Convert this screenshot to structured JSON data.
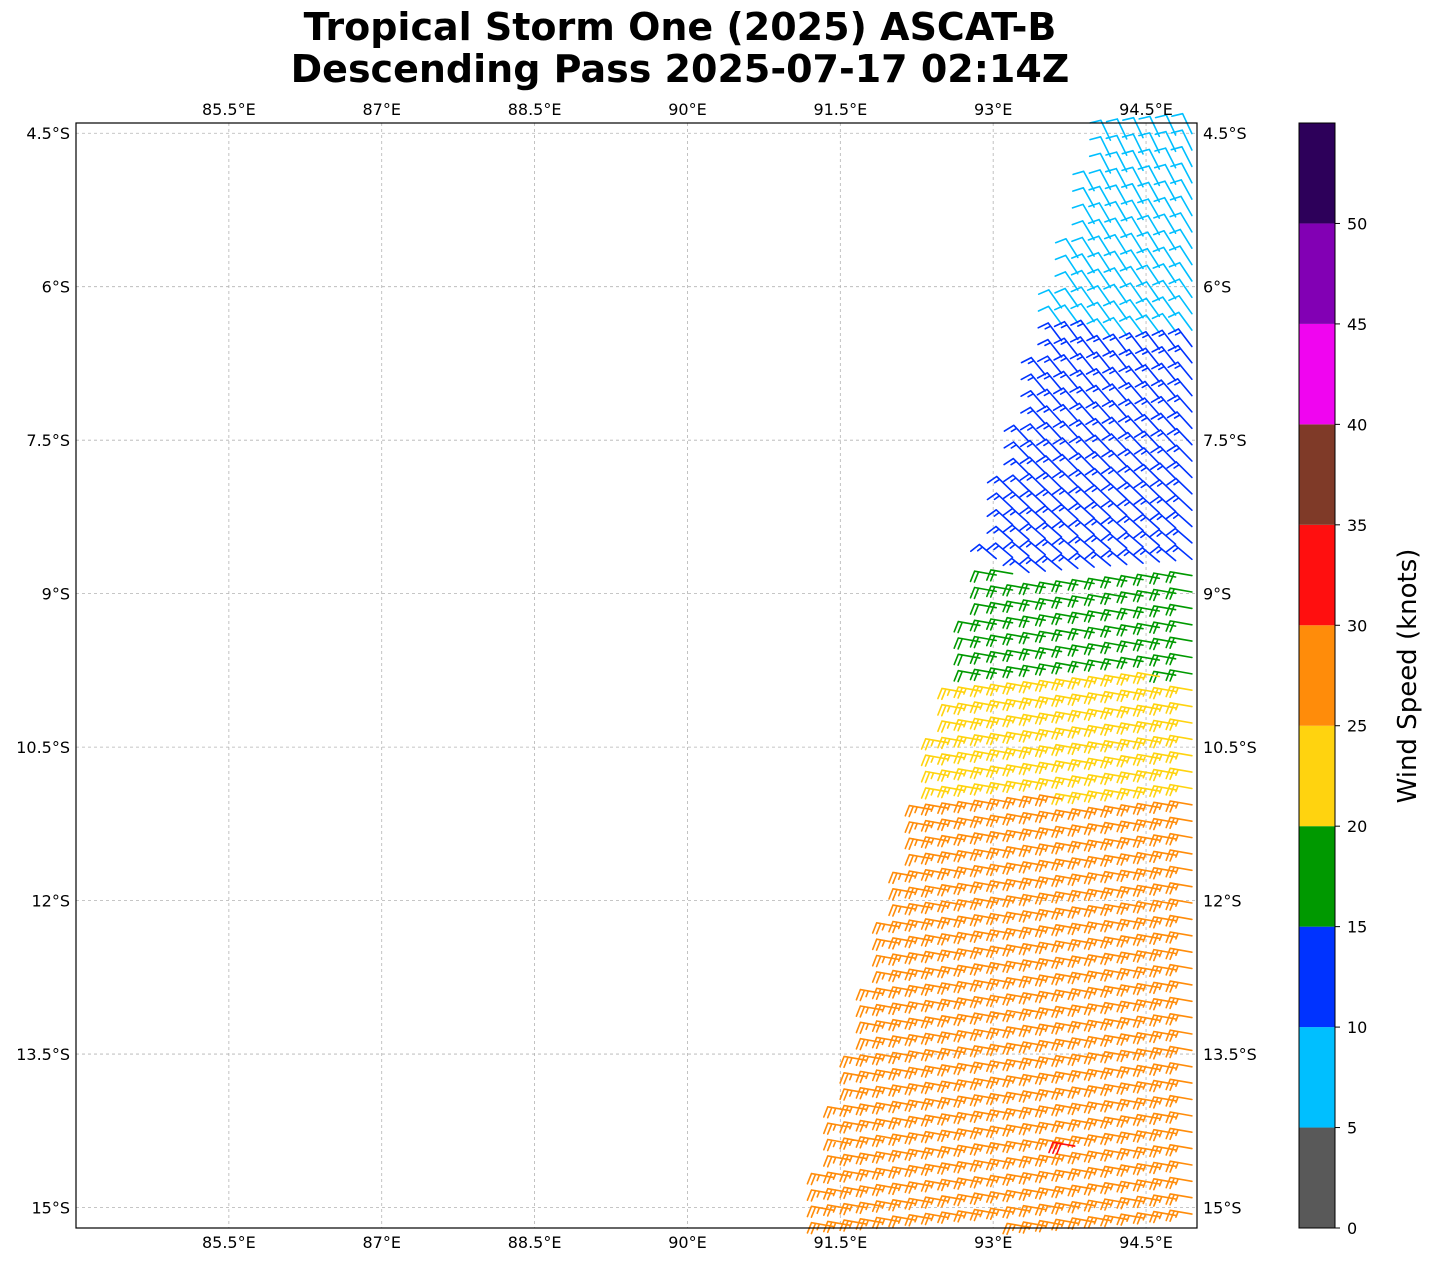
{
  "title": {
    "line1": "Tropical Storm One (2025) ASCAT-B",
    "line2": "Descending Pass 2025-07-17 02:14Z"
  },
  "map": {
    "lon_range": [
      84.0,
      95.0
    ],
    "lat_range": [
      -15.2,
      -4.4
    ],
    "lon_ticks": [
      85.5,
      87,
      88.5,
      90,
      91.5,
      93,
      94.5
    ],
    "lon_tick_labels": [
      "85.5°E",
      "87°E",
      "88.5°E",
      "90°E",
      "91.5°E",
      "93°E",
      "94.5°E"
    ],
    "lat_ticks": [
      -4.5,
      -6,
      -7.5,
      -9,
      -10.5,
      -12,
      -13.5,
      -15
    ],
    "lat_tick_labels": [
      "4.5°S",
      "6°S",
      "7.5°S",
      "9°S",
      "10.5°S",
      "12°S",
      "13.5°S",
      "15°S"
    ],
    "gridlines": true,
    "swath": {
      "description_free": true,
      "start_lat": -4.5,
      "end_lat": -15.2,
      "west_edge_lon_at_start": 94.1,
      "west_edge_lon_at_end": 91.2,
      "east_edge_lon": 95.0
    }
  },
  "colorbar": {
    "label": "Wind Speed (knots)",
    "bounds": [
      0,
      5,
      10,
      15,
      20,
      25,
      30,
      35,
      40,
      45,
      50,
      55
    ],
    "tick_labels": [
      "0",
      "5",
      "10",
      "15",
      "20",
      "25",
      "30",
      "35",
      "40",
      "45",
      "50"
    ],
    "colors": [
      "#595959",
      "#00bfff",
      "#0033ff",
      "#009900",
      "#ffd30f",
      "#ff8c0a",
      "#ff0f0f",
      "#7f3a28",
      "#f005f0",
      "#8200b4",
      "#2d005a"
    ]
  },
  "chart_data": {
    "type": "wind_barbs",
    "units": "knots",
    "speed_bands_by_latitude": [
      {
        "lat_from": -4.5,
        "lat_to": -6.5,
        "speed_kt": 8
      },
      {
        "lat_from": -6.5,
        "lat_to": -8.8,
        "speed_kt": 13
      },
      {
        "lat_from": -8.8,
        "lat_to": -9.8,
        "speed_kt": 18
      },
      {
        "lat_from": -9.8,
        "lat_to": -11.0,
        "speed_kt": 23
      },
      {
        "lat_from": -11.0,
        "lat_to": -15.2,
        "speed_kt": 25
      }
    ],
    "highlight_barb": {
      "lon": 93.8,
      "lat": -14.4,
      "speed_kt": 32
    }
  }
}
